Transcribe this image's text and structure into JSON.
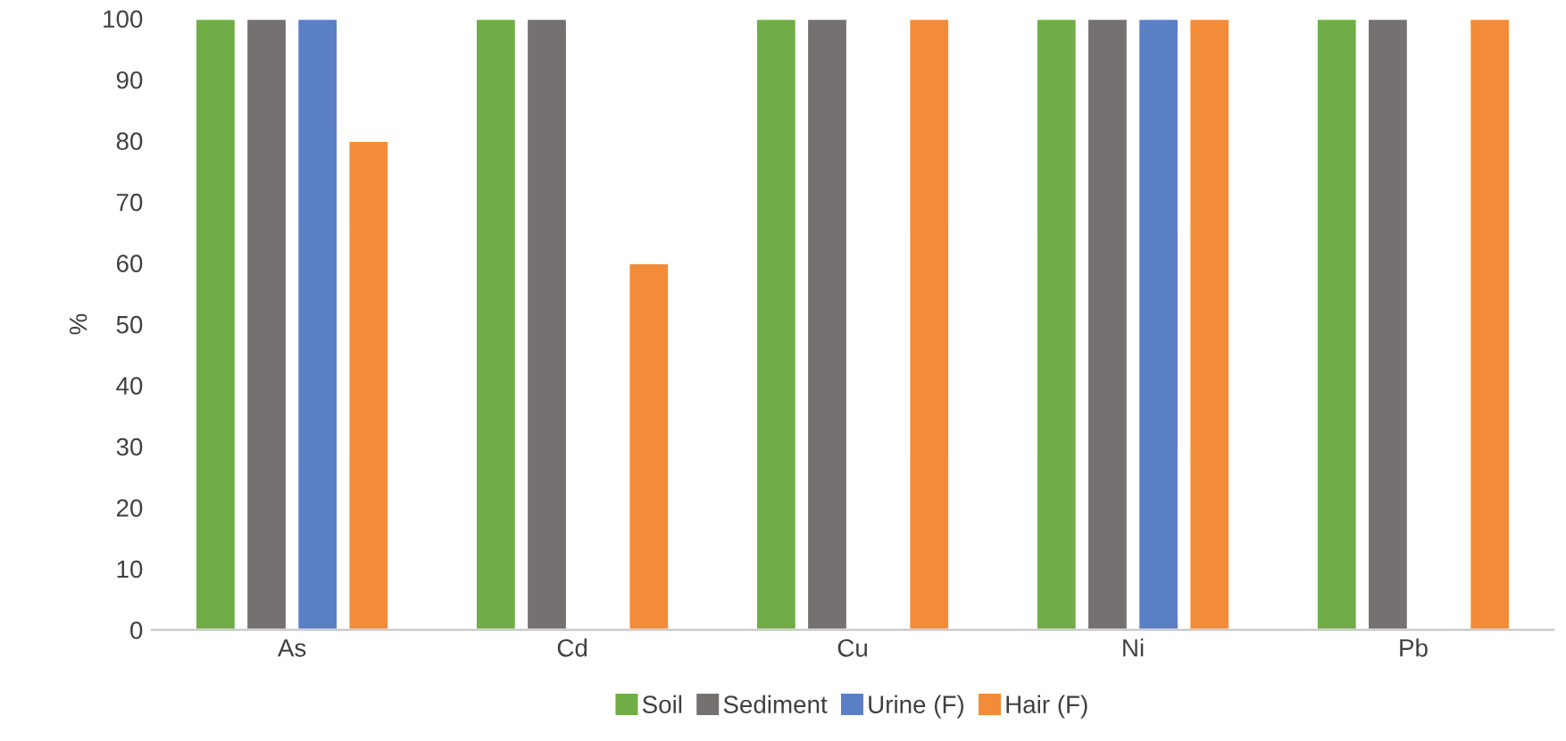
{
  "chart_data": {
    "type": "bar",
    "ylabel": "%",
    "categories": [
      "As",
      "Cd",
      "Cu",
      "Ni",
      "Pb"
    ],
    "series": [
      {
        "name": "Soil",
        "color": "#70ad47",
        "values": [
          100,
          100,
          100,
          100,
          100
        ]
      },
      {
        "name": "Sediment",
        "color": "#767171",
        "values": [
          100,
          100,
          100,
          100,
          100
        ]
      },
      {
        "name": "Urine (F)",
        "color": "#5b7fc4",
        "values": [
          100,
          null,
          null,
          100,
          null
        ]
      },
      {
        "name": "Hair (F)",
        "color": "#f28c38",
        "values": [
          80,
          60,
          100,
          100,
          100
        ]
      }
    ],
    "ylim": [
      0,
      100
    ],
    "yticks": [
      0,
      10,
      20,
      30,
      40,
      50,
      60,
      70,
      80,
      90,
      100
    ],
    "grid": false,
    "legend": "bottom"
  }
}
